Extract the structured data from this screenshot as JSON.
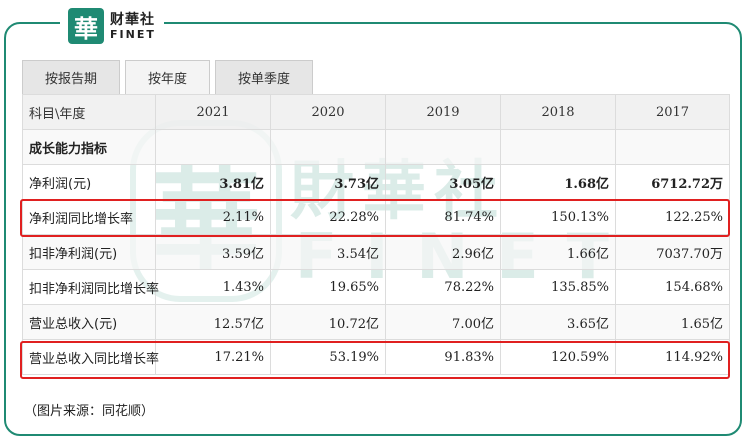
{
  "brand": {
    "logo_char": "華",
    "name_cn": "财華社",
    "name_en": "FINET",
    "accent_color": "#1f8a73"
  },
  "watermark": {
    "seal_char": "華",
    "text_cn": "財華社",
    "text_en": "FINET"
  },
  "tabs": [
    {
      "label": "按报告期",
      "active": false
    },
    {
      "label": "按年度",
      "active": true
    },
    {
      "label": "按单季度",
      "active": false
    }
  ],
  "table": {
    "header": {
      "label": "科目\\年度",
      "years": [
        "2021",
        "2020",
        "2019",
        "2018",
        "2017"
      ]
    },
    "section_title": "成长能力指标",
    "rows": [
      {
        "label": "净利润(元)",
        "values": [
          "3.81亿",
          "3.73亿",
          "3.05亿",
          "1.68亿",
          "6712.72万"
        ]
      },
      {
        "label": "净利润同比增长率",
        "values": [
          "2.11%",
          "22.28%",
          "81.74%",
          "150.13%",
          "122.25%"
        ]
      },
      {
        "label": "扣非净利润(元)",
        "values": [
          "3.59亿",
          "3.54亿",
          "2.96亿",
          "1.66亿",
          "7037.70万"
        ]
      },
      {
        "label": "扣非净利润同比增长率",
        "values": [
          "1.43%",
          "19.65%",
          "78.22%",
          "135.85%",
          "154.68%"
        ]
      },
      {
        "label": "营业总收入(元)",
        "values": [
          "12.57亿",
          "10.72亿",
          "7.00亿",
          "3.65亿",
          "1.65亿"
        ]
      },
      {
        "label": "营业总收入同比增长率",
        "values": [
          "17.21%",
          "53.19%",
          "91.83%",
          "120.59%",
          "114.92%"
        ]
      }
    ]
  },
  "highlight_color": "#e02020",
  "source_note": "（图片来源：同花顺）"
}
